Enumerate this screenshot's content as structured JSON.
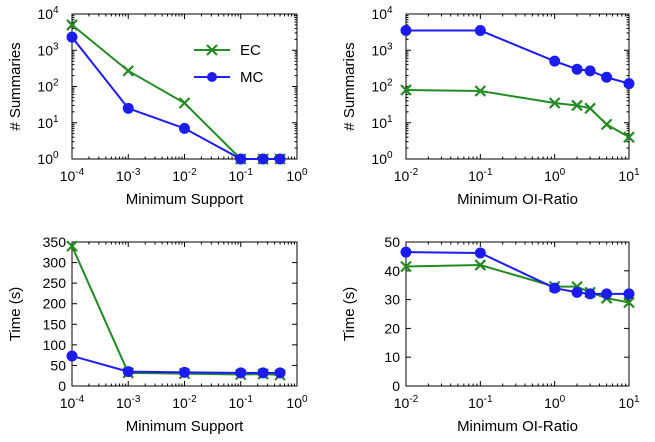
{
  "chart_data": [
    {
      "type": "line",
      "xlabel": "Minimum Support",
      "ylabel": "# Summaries",
      "x_scale": "log",
      "y_scale": "log",
      "xlim": [
        0.0001,
        1
      ],
      "ylim": [
        1,
        10000
      ],
      "x_ticks": [
        0.0001,
        0.001,
        0.01,
        0.1,
        1
      ],
      "x_tick_labels": [
        [
          "10",
          "-4"
        ],
        [
          "10",
          "-3"
        ],
        [
          "10",
          "-2"
        ],
        [
          "10",
          "-1"
        ],
        [
          "10",
          "0"
        ]
      ],
      "y_ticks": [
        1,
        10,
        100,
        1000,
        10000
      ],
      "y_tick_labels": [
        [
          "10",
          "0"
        ],
        [
          "10",
          "1"
        ],
        [
          "10",
          "2"
        ],
        [
          "10",
          "3"
        ],
        [
          "10",
          "4"
        ]
      ],
      "legend": "upper-right",
      "series": [
        {
          "name": "EC",
          "color": "#228b22",
          "marker": "x",
          "x": [
            0.0001,
            0.001,
            0.01,
            0.1,
            0.25,
            0.5
          ],
          "y": [
            5000,
            270,
            35,
            1,
            1,
            1
          ]
        },
        {
          "name": "MC",
          "color": "#1c1cf0",
          "marker": "o",
          "x": [
            0.0001,
            0.001,
            0.01,
            0.1,
            0.25,
            0.5
          ],
          "y": [
            2300,
            25,
            7,
            1,
            1,
            1
          ]
        }
      ]
    },
    {
      "type": "line",
      "xlabel": "Minimum OI-Ratio",
      "ylabel": "# Summaries",
      "x_scale": "log",
      "y_scale": "log",
      "xlim": [
        0.01,
        10
      ],
      "ylim": [
        1,
        10000
      ],
      "x_ticks": [
        0.01,
        0.1,
        1,
        10
      ],
      "x_tick_labels": [
        [
          "10",
          "-2"
        ],
        [
          "10",
          "-1"
        ],
        [
          "10",
          "0"
        ],
        [
          "10",
          "1"
        ]
      ],
      "y_ticks": [
        1,
        10,
        100,
        1000,
        10000
      ],
      "y_tick_labels": [
        [
          "10",
          "0"
        ],
        [
          "10",
          "1"
        ],
        [
          "10",
          "2"
        ],
        [
          "10",
          "3"
        ],
        [
          "10",
          "4"
        ]
      ],
      "series": [
        {
          "name": "EC",
          "color": "#228b22",
          "marker": "x",
          "x": [
            0.01,
            0.1,
            1,
            2,
            3,
            5,
            10
          ],
          "y": [
            80,
            75,
            35,
            30,
            25,
            9,
            4
          ]
        },
        {
          "name": "MC",
          "color": "#1c1cf0",
          "marker": "o",
          "x": [
            0.01,
            0.1,
            1,
            2,
            3,
            5,
            10
          ],
          "y": [
            3500,
            3500,
            500,
            300,
            270,
            180,
            120
          ]
        }
      ]
    },
    {
      "type": "line",
      "xlabel": "Minimum Support",
      "ylabel": "Time (s)",
      "x_scale": "log",
      "y_scale": "linear",
      "xlim": [
        0.0001,
        1
      ],
      "ylim": [
        0,
        350
      ],
      "x_ticks": [
        0.0001,
        0.001,
        0.01,
        0.1,
        1
      ],
      "x_tick_labels": [
        [
          "10",
          "-4"
        ],
        [
          "10",
          "-3"
        ],
        [
          "10",
          "-2"
        ],
        [
          "10",
          "-1"
        ],
        [
          "10",
          "0"
        ]
      ],
      "y_ticks": [
        0,
        50,
        100,
        150,
        200,
        250,
        300,
        350
      ],
      "y_tick_labels": [
        [
          "0",
          ""
        ],
        [
          "50",
          ""
        ],
        [
          "100",
          ""
        ],
        [
          "150",
          ""
        ],
        [
          "200",
          ""
        ],
        [
          "250",
          ""
        ],
        [
          "300",
          ""
        ],
        [
          "350",
          ""
        ]
      ],
      "series": [
        {
          "name": "EC",
          "color": "#228b22",
          "marker": "x",
          "x": [
            0.0001,
            0.001,
            0.01,
            0.1,
            0.25,
            0.5
          ],
          "y": [
            340,
            32,
            30,
            28,
            29,
            27
          ]
        },
        {
          "name": "MC",
          "color": "#1c1cf0",
          "marker": "o",
          "x": [
            0.0001,
            0.001,
            0.01,
            0.1,
            0.25,
            0.5
          ],
          "y": [
            73,
            35,
            33,
            32,
            32,
            32
          ]
        }
      ]
    },
    {
      "type": "line",
      "xlabel": "Minimum OI-Ratio",
      "ylabel": "Time (s)",
      "x_scale": "log",
      "y_scale": "linear",
      "xlim": [
        0.01,
        10
      ],
      "ylim": [
        0,
        50
      ],
      "x_ticks": [
        0.01,
        0.1,
        1,
        10
      ],
      "x_tick_labels": [
        [
          "10",
          "-2"
        ],
        [
          "10",
          "-1"
        ],
        [
          "10",
          "0"
        ],
        [
          "10",
          "1"
        ]
      ],
      "y_ticks": [
        0,
        10,
        20,
        30,
        40,
        50
      ],
      "y_tick_labels": [
        [
          "0",
          ""
        ],
        [
          "10",
          ""
        ],
        [
          "20",
          ""
        ],
        [
          "30",
          ""
        ],
        [
          "40",
          ""
        ],
        [
          "50",
          ""
        ]
      ],
      "series": [
        {
          "name": "EC",
          "color": "#228b22",
          "marker": "x",
          "x": [
            0.01,
            0.1,
            1,
            2,
            3,
            5,
            10
          ],
          "y": [
            41.5,
            42,
            34.5,
            34.5,
            32.5,
            30.5,
            29
          ]
        },
        {
          "name": "MC",
          "color": "#1c1cf0",
          "marker": "o",
          "x": [
            0.01,
            0.1,
            1,
            2,
            3,
            5,
            10
          ],
          "y": [
            46.5,
            46.2,
            34,
            32.5,
            32,
            32,
            32
          ]
        }
      ]
    }
  ]
}
